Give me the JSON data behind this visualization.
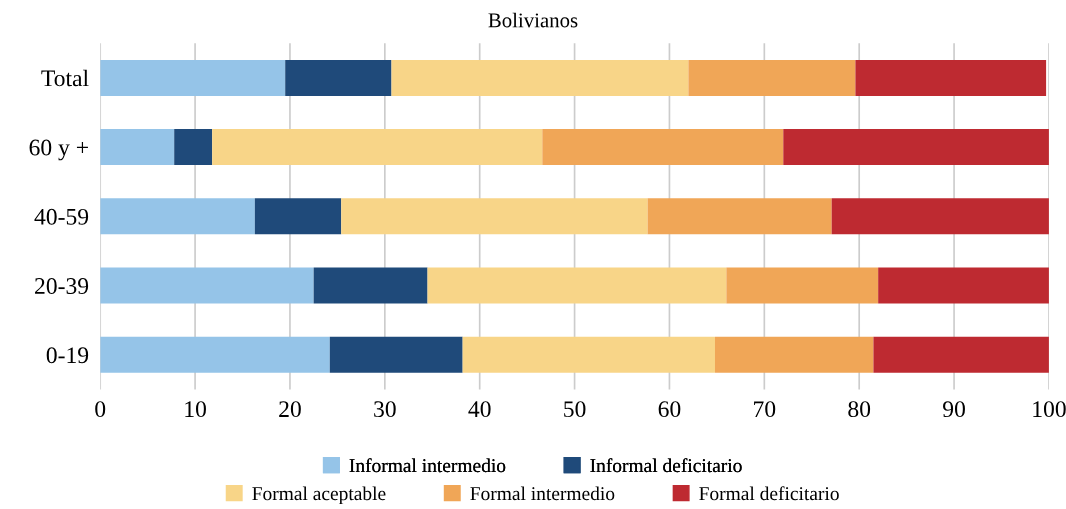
{
  "chart_data": {
    "type": "bar",
    "orientation": "horizontal",
    "stacked": true,
    "title": "Bolivianos",
    "categories": [
      "Total",
      "60 y +",
      "40-59",
      "20-39",
      "0-19"
    ],
    "series": [
      {
        "name": "Informal intermedio",
        "color": "#95c4e8",
        "values": [
          19.5,
          7.8,
          16.3,
          22.5,
          24.2
        ]
      },
      {
        "name": "Informal deficitario",
        "color": "#1f4a7a",
        "values": [
          11.2,
          4.0,
          9.1,
          12.0,
          14.0
        ]
      },
      {
        "name": "Formal aceptable",
        "color": "#f8d588",
        "values": [
          31.3,
          34.8,
          32.3,
          31.5,
          26.6
        ]
      },
      {
        "name": "Formal intermedio",
        "color": "#f0a657",
        "values": [
          17.6,
          25.4,
          19.4,
          16.0,
          16.7
        ]
      },
      {
        "name": "Formal deficitario",
        "color": "#be2a31",
        "values": [
          20.1,
          28.0,
          22.9,
          18.0,
          18.5
        ]
      }
    ],
    "xlim": [
      0,
      100
    ],
    "xticks": [
      0,
      10,
      20,
      30,
      40,
      50,
      60,
      70,
      80,
      90,
      100
    ],
    "grid": "x",
    "legend": "bottom"
  }
}
